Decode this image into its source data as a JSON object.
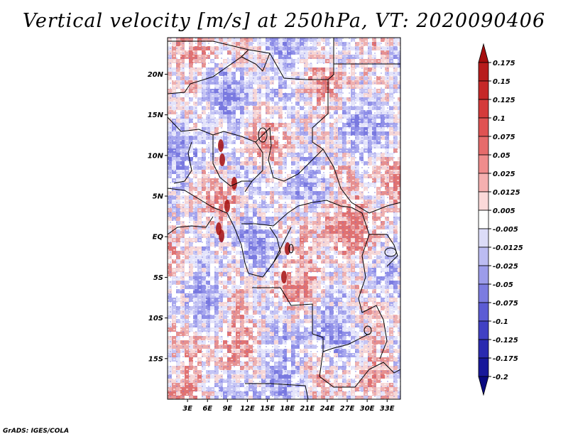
{
  "title": "Vertical velocity [m/s] at 250hPa, VT: 2020090406",
  "credit": "GrADS: IGES/COLA",
  "lat_labels": [
    "20N",
    "15N",
    "10N",
    "5N",
    "EQ",
    "5S",
    "10S",
    "15S"
  ],
  "lat_values": [
    20,
    15,
    10,
    5,
    0,
    -5,
    -10,
    -15
  ],
  "lon_labels": [
    "3E",
    "6E",
    "9E",
    "12E",
    "15E",
    "18E",
    "21E",
    "24E",
    "27E",
    "30E",
    "33E"
  ],
  "lon_values": [
    3,
    6,
    9,
    12,
    15,
    18,
    21,
    24,
    27,
    30,
    33
  ],
  "colorbar": {
    "labels": [
      "0.175",
      "0.15",
      "0.125",
      "0.1",
      "0.075",
      "0.05",
      "0.025",
      "0.0125",
      "0.005",
      "-0.005",
      "-0.0125",
      "-0.025",
      "-0.05",
      "-0.075",
      "-0.1",
      "-0.125",
      "-0.175",
      "-0.2"
    ],
    "colors": [
      "#a50e0e",
      "#b71c1c",
      "#c62828",
      "#d43a3a",
      "#e05252",
      "#e66b6b",
      "#ef8c8c",
      "#f5b0b0",
      "#fbd9d9",
      "#ffffff",
      "#dcdcf8",
      "#bcbcf2",
      "#9c9cea",
      "#7c7ce0",
      "#5c5cd4",
      "#4040c4",
      "#2a2ab0",
      "#18189a",
      "#0a0a80"
    ]
  },
  "chart_data": {
    "type": "heatmap",
    "variable": "Vertical velocity [m/s] at 250hPa",
    "valid_time": "2020090406",
    "lon_range": [
      0,
      35
    ],
    "lat_range": [
      -20,
      24.5
    ],
    "color_levels": [
      -0.2,
      -0.175,
      -0.125,
      -0.1,
      -0.075,
      -0.05,
      -0.025,
      -0.0125,
      -0.005,
      0.005,
      0.0125,
      0.025,
      0.05,
      0.075,
      0.1,
      0.125,
      0.15,
      0.175
    ]
  }
}
